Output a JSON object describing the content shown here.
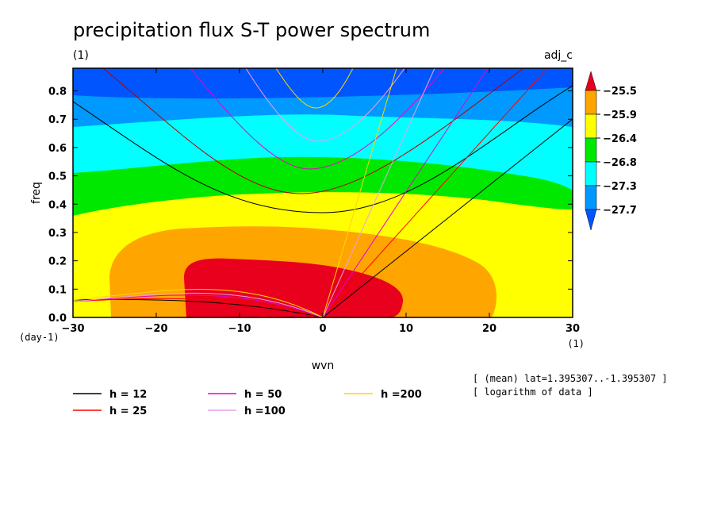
{
  "chart_data": {
    "type": "contour",
    "title": "precipitation flux S-T power spectrum",
    "subtitle": "(1)",
    "dataset_label": "adj_c",
    "xlabel": "wvn",
    "ylabel": "freq",
    "x_unit": "(1)",
    "y_unit": "(day-1)",
    "xlim": [
      -30,
      30
    ],
    "ylim": [
      0,
      0.88
    ],
    "x_ticks": [
      "-30",
      "-20",
      "-10",
      "0",
      "10",
      "20",
      "30"
    ],
    "y_ticks": [
      "0.0",
      "0.1",
      "0.2",
      "0.3",
      "0.4",
      "0.5",
      "0.6",
      "0.7",
      "0.8"
    ],
    "colorbar": {
      "levels": [
        "-25.5",
        "-25.9",
        "-26.4",
        "-26.8",
        "-27.3",
        "-27.7"
      ],
      "colors": [
        "#e8001c",
        "#ffa500",
        "#ffff00",
        "#00e800",
        "#00ffff",
        "#0099ff",
        "#0055ff"
      ]
    },
    "contour_regions": [
      {
        "level": "< -27.7",
        "color": "#0055ff",
        "region": "top edge, freq ≈ 0.78–0.88"
      },
      {
        "level": "-27.7",
        "color": "#0099ff",
        "region": "band near freq ≈ 0.65–0.8"
      },
      {
        "level": "-27.3",
        "color": "#00ffff",
        "region": "band near freq ≈ 0.5–0.7"
      },
      {
        "level": "-26.8",
        "color": "#00e800",
        "region": "band near freq ≈ 0.4–0.55"
      },
      {
        "level": "-26.4",
        "color": "#ffff00",
        "region": "broad low-freq region"
      },
      {
        "level": "-25.9",
        "color": "#ffa500",
        "region": "wvn -25 to 20, freq 0–0.3"
      },
      {
        "level": "-25.5",
        "color": "#e8001c",
        "region": "wvn -17 to 9, freq 0–0.17"
      }
    ],
    "dispersion_curves": [
      {
        "name": "h = 12",
        "color": "#000000"
      },
      {
        "name": "h = 25",
        "color": "#ff0000"
      },
      {
        "name": "h = 50",
        "color": "#e800c8"
      },
      {
        "name": "h =100",
        "color": "#e8a0e8"
      },
      {
        "name": "h =200",
        "color": "#ffd700"
      }
    ],
    "notes": [
      "[ (mean) lat=1.395307..-1.395307 ]",
      "[ logarithm of data ]"
    ]
  }
}
